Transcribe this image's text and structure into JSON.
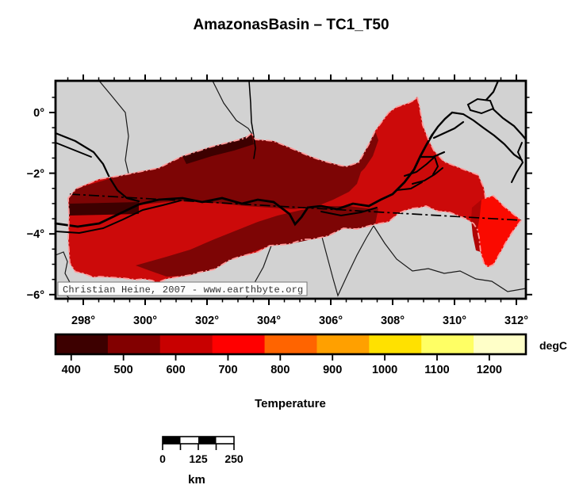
{
  "title": "AmazonasBasin – TC1_T50",
  "map": {
    "background": "#D2D2D2",
    "x_tick_labels": [
      "298°",
      "300°",
      "302°",
      "304°",
      "306°",
      "308°",
      "310°",
      "312°"
    ],
    "y_tick_labels": [
      "0°",
      "−2°",
      "−4°",
      "−6°"
    ],
    "watermark": "Christian Heine, 2007 - www.earthbyte.org"
  },
  "legend": {
    "title": "Temperature",
    "unit": "degC",
    "labels": [
      "400",
      "500",
      "600",
      "700",
      "800",
      "900",
      "1000",
      "1100",
      "1200"
    ],
    "colors": [
      "#3D0000",
      "#820000",
      "#C80000",
      "#FF0000",
      "#FF6400",
      "#FFA000",
      "#FFE100",
      "#FFFF64",
      "#FFFFC8"
    ]
  },
  "scalebar": {
    "labels": [
      "0",
      "125",
      "250"
    ],
    "unit": "km"
  },
  "palette": {
    "map_bg": "#D2D2D2",
    "basin_mid": "#CC0A0A",
    "basin_dark": "#7D0505",
    "basin_darkest": "#3D0000",
    "basin_bright": "#FA0A00",
    "basin_strip": "#B00505",
    "outline_pink": "#FF9C9C"
  },
  "map_data": {
    "type": "heatmap-map",
    "variable": "Temperature",
    "unit": "degC",
    "colorbar_values": [
      400,
      500,
      600,
      700,
      800,
      900,
      1000,
      1100,
      1200
    ],
    "lon_ticks_deg": [
      298,
      300,
      302,
      304,
      306,
      308,
      310,
      312
    ],
    "lat_ticks_deg": [
      0,
      -2,
      -4,
      -6
    ],
    "scalebar_km": [
      0,
      125,
      250
    ]
  }
}
